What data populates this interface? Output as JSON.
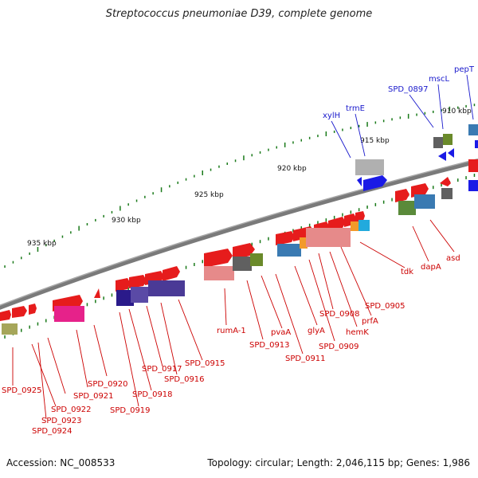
{
  "title": "Streptococcus pneumoniae D39, complete genome",
  "footer": {
    "accession": "Accession: NC_008533",
    "summary": "Topology: circular; Length: 2,046,115 bp; Genes: 1,986"
  },
  "ruler": {
    "labels": [
      "935 kbp",
      "930 kbp",
      "925 kbp",
      "920 kbp",
      "915 kbp",
      "910 kbp"
    ]
  },
  "colors": {
    "backbone": "#808080",
    "forward_gene": "#e61c1c",
    "reverse_gene": "#1a1ae6",
    "label_forward": "#cc0000",
    "label_reverse": "#1a1acc",
    "tick": "#1a7a1a"
  },
  "gene_labels_red": [
    "SPD_0925",
    "SPD_0924",
    "SPD_0923",
    "SPD_0922",
    "SPD_0921",
    "SPD_0920",
    "SPD_0919",
    "SPD_0918",
    "SPD_0917",
    "SPD_0916",
    "SPD_0915",
    "rumA-1",
    "SPD_0913",
    "pvaA",
    "SPD_0911",
    "glyA",
    "SPD_0909",
    "SPD_0908",
    "hemK",
    "prfA",
    "SPD_0905",
    "tdk",
    "dapA",
    "asd"
  ],
  "gene_labels_blue": [
    "xylH",
    "trmE",
    "SPD_0897",
    "mscL",
    "pepT"
  ]
}
